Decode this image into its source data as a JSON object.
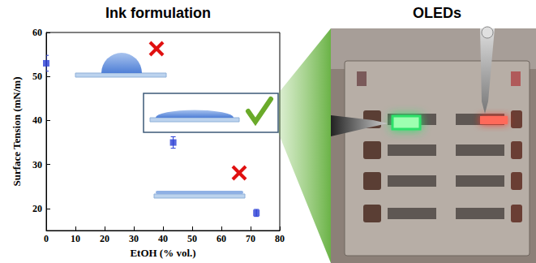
{
  "chart_data": {
    "type": "scatter",
    "title": "Ink formulation",
    "x_label": "EtOH (% vol.)",
    "y_label": "Surface Tension (mN/m)",
    "x": [
      0,
      43.5,
      72
    ],
    "values": [
      53,
      35,
      19
    ],
    "errors": [
      1.8,
      1.3,
      0.8
    ],
    "color": "#2b3fd6",
    "marker": "square",
    "xlim": [
      0,
      80
    ],
    "xticks": [
      0,
      10,
      20,
      30,
      40,
      50,
      60,
      70,
      80
    ],
    "ylim": [
      15,
      60
    ],
    "yticks": [
      20,
      30,
      40,
      50,
      60
    ],
    "grid": false
  },
  "photo": {
    "title": "OLEDs"
  }
}
